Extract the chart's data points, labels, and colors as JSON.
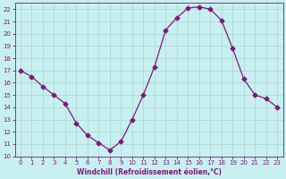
{
  "x": [
    0,
    1,
    2,
    3,
    4,
    5,
    6,
    7,
    8,
    9,
    10,
    11,
    12,
    13,
    14,
    15,
    16,
    17,
    18,
    19,
    20,
    21,
    22,
    23
  ],
  "y": [
    17.0,
    16.5,
    15.7,
    15.0,
    14.3,
    12.7,
    11.7,
    11.1,
    10.5,
    11.2,
    13.0,
    15.0,
    17.3,
    20.3,
    21.3,
    22.1,
    22.2,
    22.0,
    21.1,
    18.8,
    16.3,
    15.0,
    14.7,
    14.0
  ],
  "line_color": "#7b1a7b",
  "marker": "D",
  "marker_size": 2.5,
  "bg_color": "#c8f0f0",
  "grid_color": "#b0d8d8",
  "xlabel": "Windchill (Refroidissement éolien,°C)",
  "xlabel_color": "#7b1a7b",
  "tick_color": "#7b1a7b",
  "ylim": [
    10,
    22.5
  ],
  "xlim": [
    -0.5,
    23.5
  ],
  "yticks": [
    10,
    11,
    12,
    13,
    14,
    15,
    16,
    17,
    18,
    19,
    20,
    21,
    22
  ],
  "xticks": [
    0,
    1,
    2,
    3,
    4,
    5,
    6,
    7,
    8,
    9,
    10,
    11,
    12,
    13,
    14,
    15,
    16,
    17,
    18,
    19,
    20,
    21,
    22,
    23
  ]
}
